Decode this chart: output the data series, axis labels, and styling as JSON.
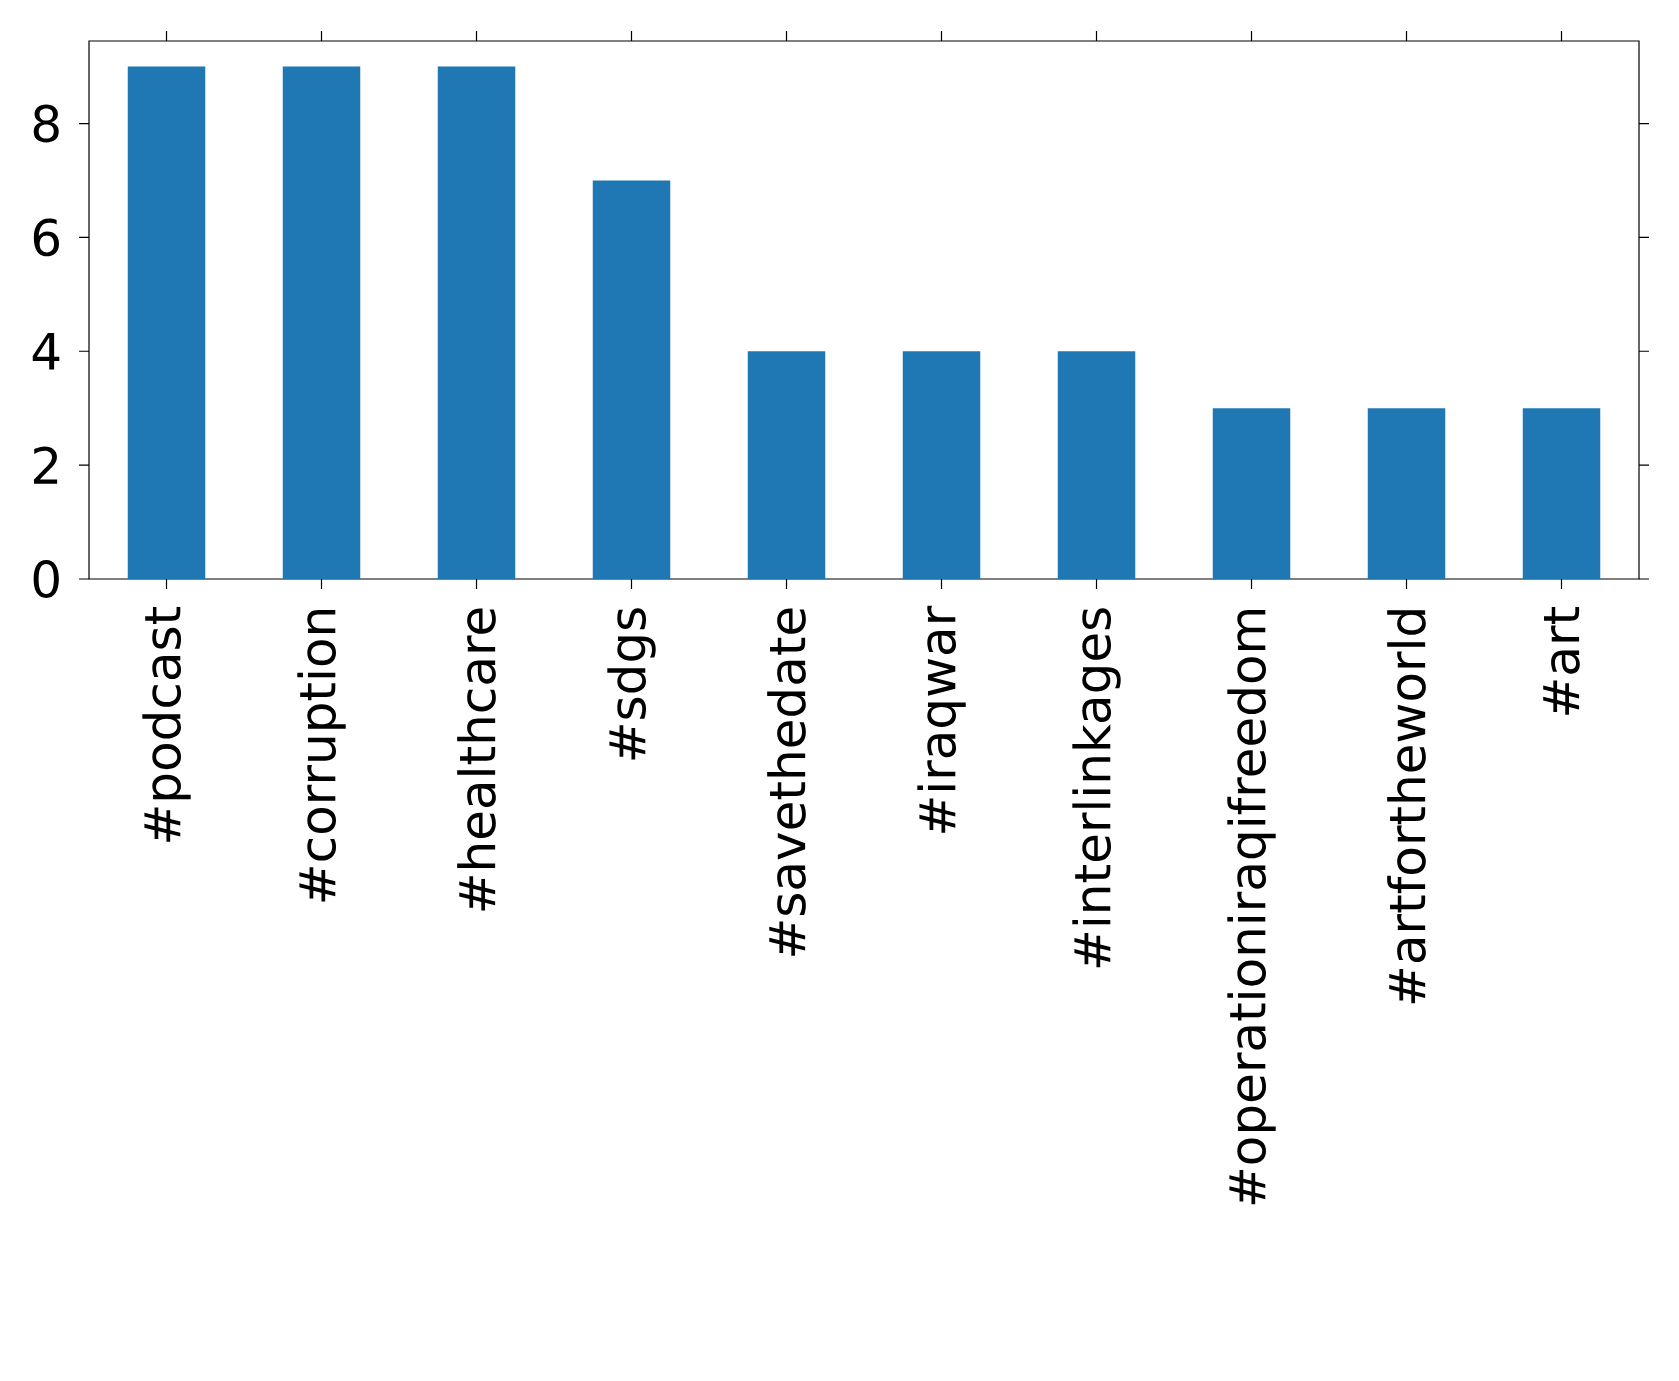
{
  "chart_data": {
    "type": "bar",
    "categories": [
      "#podcast",
      "#corruption",
      "#healthcare",
      "#sdgs",
      "#savethedate",
      "#iraqwar",
      "#interlinkages",
      "#operationiraqifreedom",
      "#artfortheworld",
      "#art"
    ],
    "values": [
      9,
      9,
      9,
      7,
      4,
      4,
      4,
      3,
      3,
      3
    ],
    "color": "#1f77b4",
    "ylim": [
      0,
      9.45
    ],
    "yticks": [
      0,
      2,
      4,
      6,
      8
    ]
  }
}
